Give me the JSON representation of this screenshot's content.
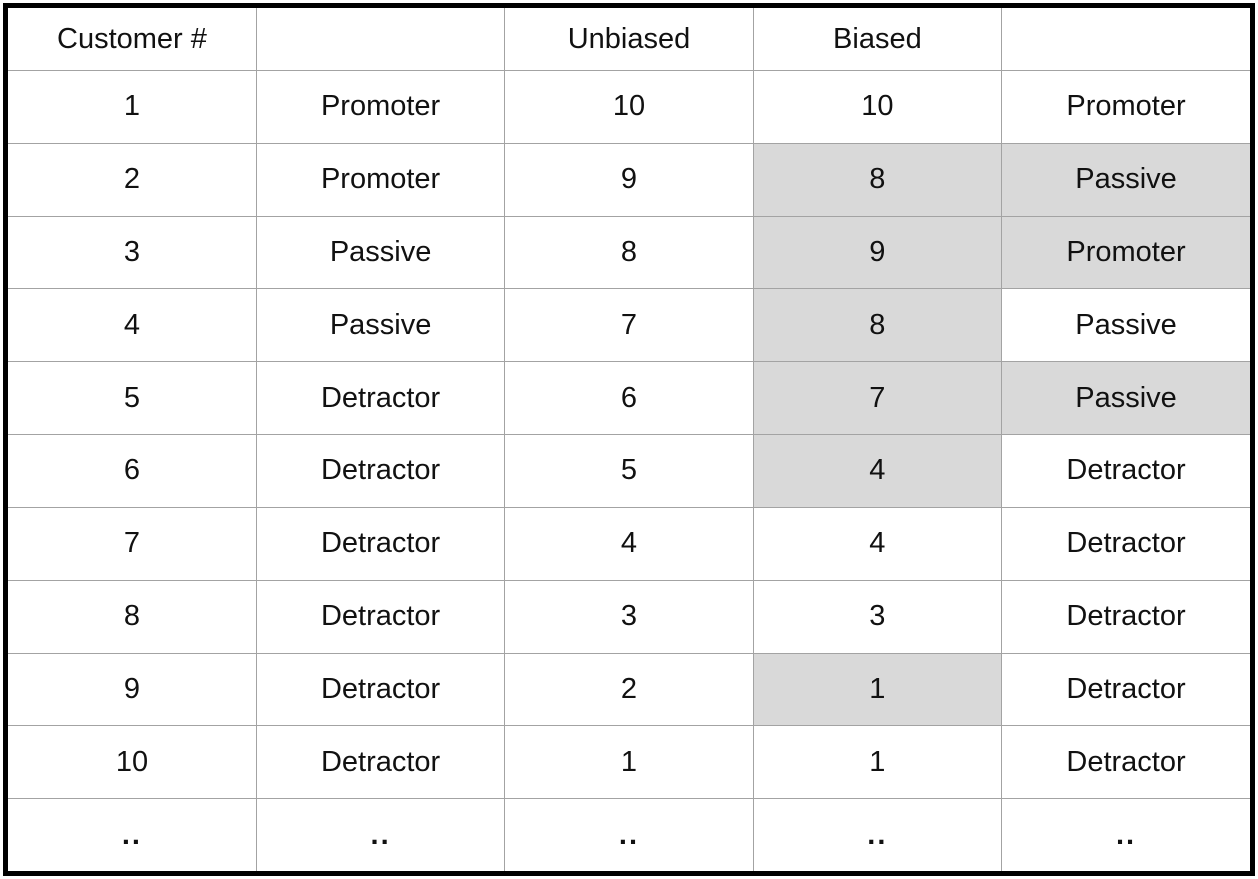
{
  "chart_data": {
    "type": "table",
    "title": "",
    "columns": [
      "Customer #",
      "",
      "Unbiased",
      "Biased",
      ""
    ],
    "rows": [
      {
        "cells": [
          "1",
          "Promoter",
          "10",
          "10",
          "Promoter"
        ],
        "shaded": [
          false,
          false,
          false,
          false,
          false
        ]
      },
      {
        "cells": [
          "2",
          "Promoter",
          "9",
          "8",
          "Passive"
        ],
        "shaded": [
          false,
          false,
          false,
          true,
          true
        ]
      },
      {
        "cells": [
          "3",
          "Passive",
          "8",
          "9",
          "Promoter"
        ],
        "shaded": [
          false,
          false,
          false,
          true,
          true
        ]
      },
      {
        "cells": [
          "4",
          "Passive",
          "7",
          "8",
          "Passive"
        ],
        "shaded": [
          false,
          false,
          false,
          true,
          false
        ]
      },
      {
        "cells": [
          "5",
          "Detractor",
          "6",
          "7",
          "Passive"
        ],
        "shaded": [
          false,
          false,
          false,
          true,
          true
        ]
      },
      {
        "cells": [
          "6",
          "Detractor",
          "5",
          "4",
          "Detractor"
        ],
        "shaded": [
          false,
          false,
          false,
          true,
          false
        ]
      },
      {
        "cells": [
          "7",
          "Detractor",
          "4",
          "4",
          "Detractor"
        ],
        "shaded": [
          false,
          false,
          false,
          false,
          false
        ]
      },
      {
        "cells": [
          "8",
          "Detractor",
          "3",
          "3",
          "Detractor"
        ],
        "shaded": [
          false,
          false,
          false,
          false,
          false
        ]
      },
      {
        "cells": [
          "9",
          "Detractor",
          "2",
          "1",
          "Detractor"
        ],
        "shaded": [
          false,
          false,
          false,
          true,
          false
        ]
      },
      {
        "cells": [
          "10",
          "Detractor",
          "1",
          "1",
          "Detractor"
        ],
        "shaded": [
          false,
          false,
          false,
          false,
          false
        ]
      },
      {
        "cells": [
          "..",
          "..",
          "..",
          "..",
          ".."
        ],
        "shaded": [
          false,
          false,
          false,
          false,
          false
        ],
        "dots": true
      }
    ],
    "colors": {
      "shaded_cell": "#d9d9d9",
      "grid_line": "#a3a3a3",
      "outer_border": "#000000",
      "text": "#111111",
      "background": "#ffffff"
    },
    "layout": {
      "grid": true,
      "header_row": true,
      "num_data_rows": 10,
      "continuation_row": true
    }
  }
}
